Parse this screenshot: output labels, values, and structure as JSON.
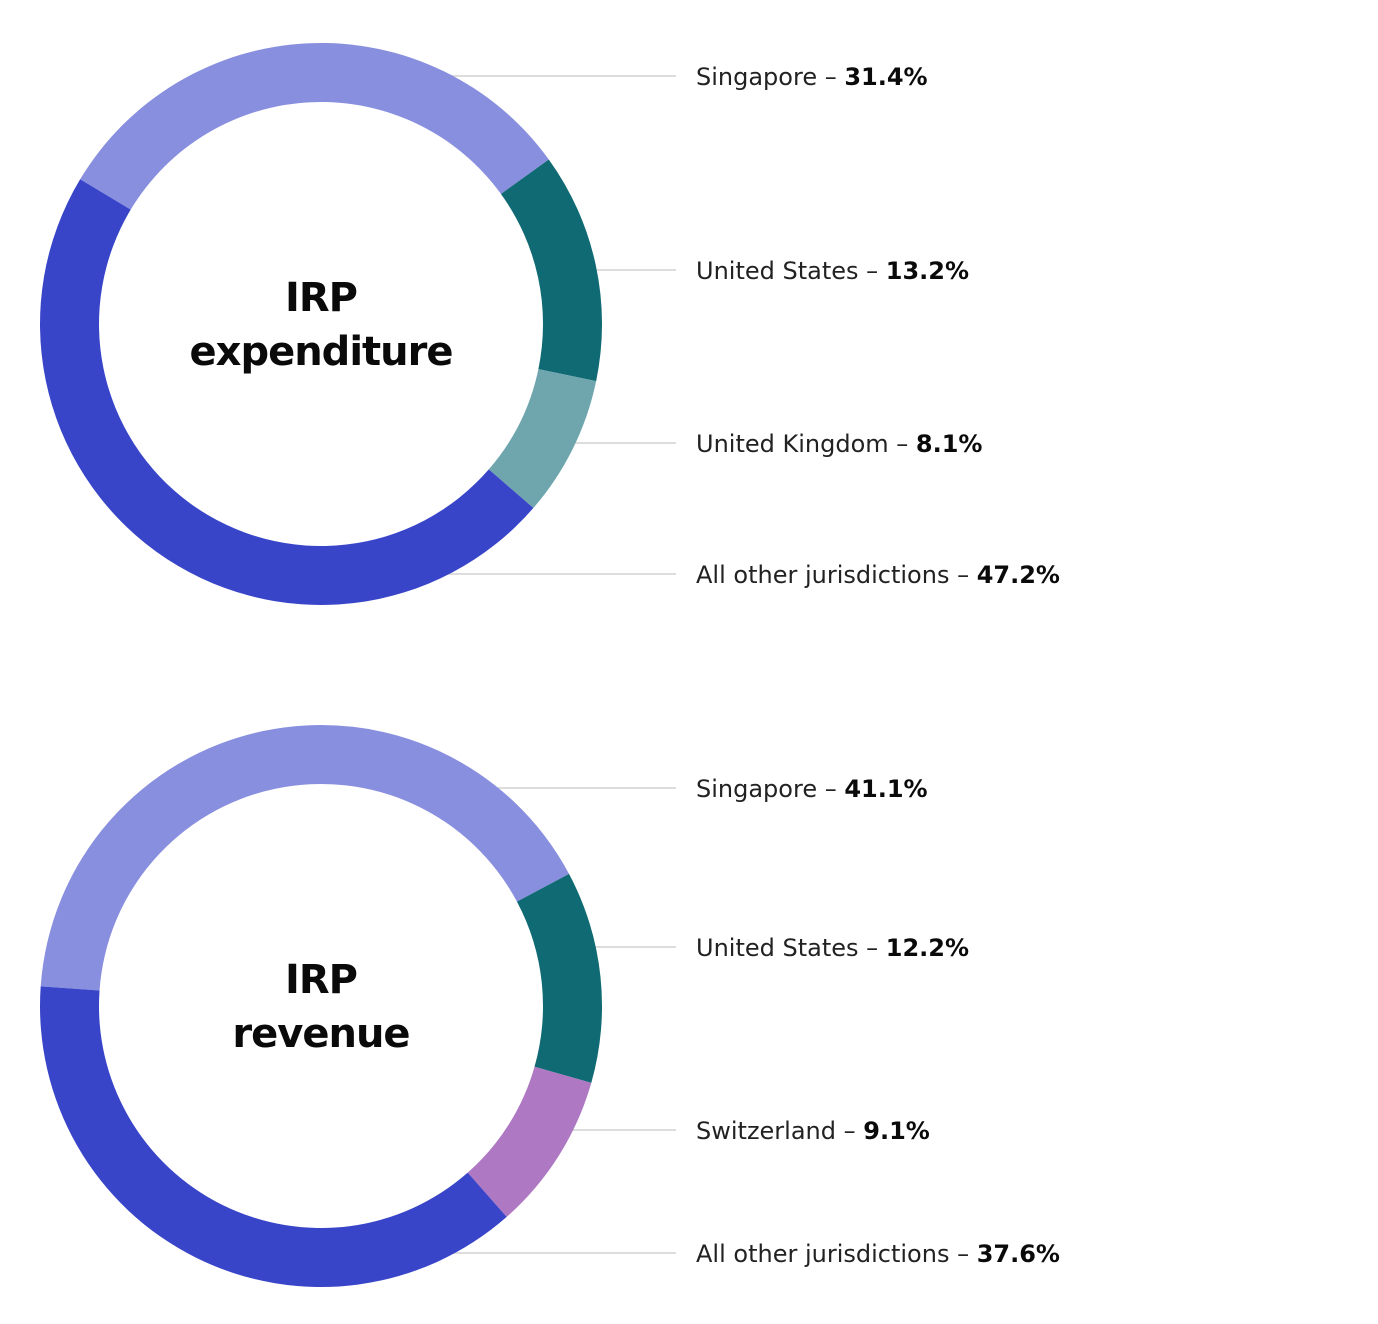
{
  "chart_data": [
    {
      "type": "pie",
      "title": "IRP expenditure",
      "title_lines": [
        "IRP",
        "expenditure"
      ],
      "slices": [
        {
          "label": "Singapore",
          "value": 31.4,
          "value_text": "31.4%",
          "color": "#898fdf"
        },
        {
          "label": "United States",
          "value": 13.2,
          "value_text": "13.2%",
          "color": "#0f6a73"
        },
        {
          "label": "United Kingdom",
          "value": 8.1,
          "value_text": "8.1%",
          "color": "#6fa6ad"
        },
        {
          "label": "All other jurisdictions",
          "value": 47.2,
          "value_text": "47.2%",
          "color": "#3945c9"
        }
      ]
    },
    {
      "type": "pie",
      "title": "IRP revenue",
      "title_lines": [
        "IRP",
        "revenue"
      ],
      "slices": [
        {
          "label": "Singapore",
          "value": 41.1,
          "value_text": "41.1%",
          "color": "#898fdf"
        },
        {
          "label": "United States",
          "value": 12.2,
          "value_text": "12.2%",
          "color": "#0f6a73"
        },
        {
          "label": "Switzerland",
          "value": 9.1,
          "value_text": "9.1%",
          "color": "#ae78c3"
        },
        {
          "label": "All other jurisdictions",
          "value": 37.6,
          "value_text": "37.6%",
          "color": "#3945c9"
        }
      ]
    }
  ]
}
